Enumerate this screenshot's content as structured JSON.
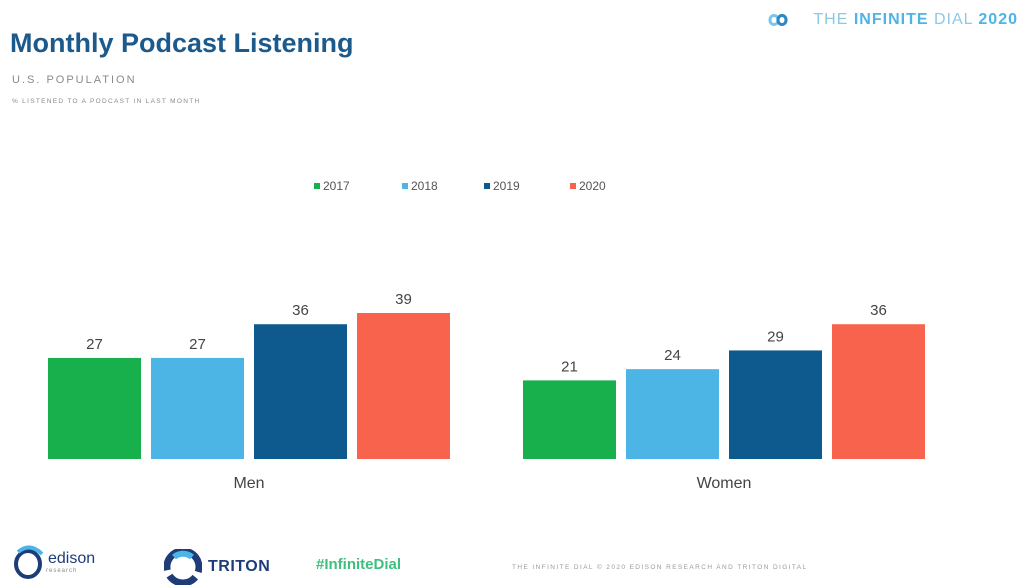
{
  "header": {
    "title": "Monthly Podcast Listening",
    "subtitle": "U.S. POPULATION",
    "subtitle2": "% LISTENED TO A PODCAST IN LAST MONTH"
  },
  "brand": {
    "the": "THE",
    "name": "INFINITE",
    "dial": "DIAL",
    "year": "2020",
    "icon": "infinity-icon"
  },
  "footer": {
    "edison": "edison",
    "edison_sub": "research",
    "triton": "TRITON",
    "hashtag": "#InfiniteDial",
    "copyright": "THE INFINITE DIAL   © 2020 EDISON RESEARCH AND TRITON DIGITAL"
  },
  "colors": {
    "2017": "#18b04d",
    "2018": "#4db4e6",
    "2019": "#0e5a8e",
    "2020": "#f7634c"
  },
  "chart_data": {
    "type": "bar",
    "categories": [
      "Men",
      "Women"
    ],
    "series": [
      {
        "name": "2017",
        "values": [
          27,
          21
        ]
      },
      {
        "name": "2018",
        "values": [
          27,
          24
        ]
      },
      {
        "name": "2019",
        "values": [
          36,
          29
        ]
      },
      {
        "name": "2020",
        "values": [
          39,
          36
        ]
      }
    ],
    "ylim": [
      0,
      39
    ],
    "legend_position": "top-center",
    "grid": false,
    "data_labels": true
  }
}
